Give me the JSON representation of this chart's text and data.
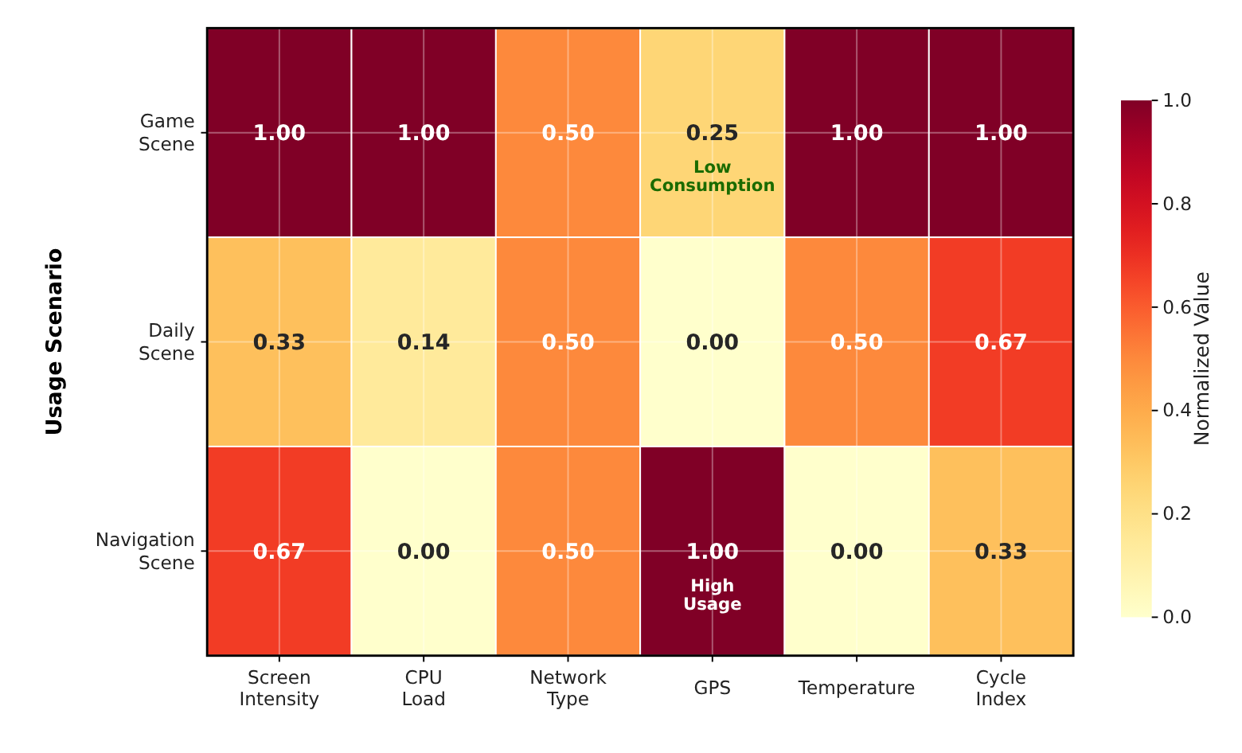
{
  "chart_data": {
    "type": "heatmap",
    "ylabel": "Usage Scenario",
    "clabel": "Normalized Value",
    "categories": [
      "Screen\nIntensity",
      "CPU\nLoad",
      "Network\nType",
      "GPS",
      "Temperature",
      "Cycle\nIndex"
    ],
    "y_categories": [
      "Game\nScene",
      "Daily\nScene",
      "Navigation\nScene"
    ],
    "cells": [
      [
        1.0,
        1.0,
        0.5,
        0.25,
        1.0,
        1.0
      ],
      [
        0.33,
        0.14,
        0.5,
        0.0,
        0.5,
        0.67
      ],
      [
        0.67,
        0.0,
        0.5,
        1.0,
        0.0,
        0.33
      ]
    ],
    "cell_labels": [
      [
        "1.00",
        "1.00",
        "0.50",
        "0.25",
        "1.00",
        "1.00"
      ],
      [
        "0.33",
        "0.14",
        "0.50",
        "0.00",
        "0.50",
        "0.67"
      ],
      [
        "0.67",
        "0.00",
        "0.50",
        "1.00",
        "0.00",
        "0.33"
      ]
    ],
    "grid": true,
    "clim": [
      0,
      1
    ],
    "cticks": [
      {
        "value": 0,
        "label": "0.0"
      },
      {
        "value": 0.2,
        "label": "0.2"
      },
      {
        "value": 0.4,
        "label": "0.4"
      },
      {
        "value": 0.6,
        "label": "0.6"
      },
      {
        "value": 0.8,
        "label": "0.8"
      },
      {
        "value": 1,
        "label": "1.0"
      }
    ],
    "annotations": [
      "Low\nConsumption",
      "High\nUsage"
    ]
  }
}
